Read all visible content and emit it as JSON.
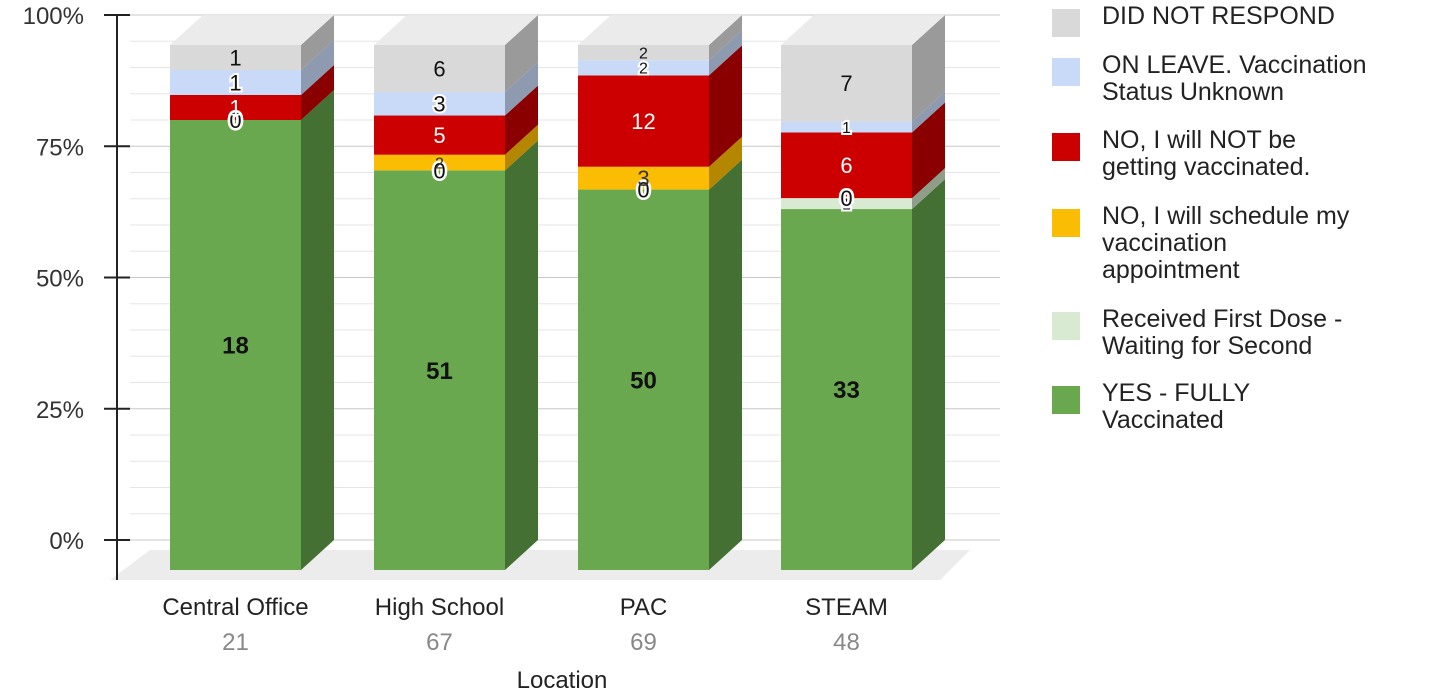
{
  "chart_data": {
    "type": "bar",
    "stacked": true,
    "normalized_percent": true,
    "xlabel": "Location",
    "ylabel": "",
    "ylim": [
      0,
      100
    ],
    "yticks": [
      "0%",
      "25%",
      "50%",
      "75%",
      "100%"
    ],
    "categories": [
      "Central Office",
      "High School",
      "PAC",
      "STEAM"
    ],
    "category_totals": [
      "21",
      "67",
      "69",
      "48"
    ],
    "series": [
      {
        "name": "YES - FULLY\nVaccinated",
        "color": "#6aa84f",
        "side_color": "#447034",
        "label_color": "#111111",
        "values": [
          18,
          51,
          50,
          33
        ]
      },
      {
        "name": "Received First Dose -\nWaiting for Second",
        "color": "#d9ead3",
        "side_color": "#8f9e8a",
        "label_color": "#111111",
        "values": [
          0,
          0,
          0,
          1
        ]
      },
      {
        "name": "NO, I will schedule my\nvaccination\nappointment",
        "color": "#fbbc04",
        "side_color": "#b58700",
        "label_color": "#333333",
        "values": [
          0,
          2,
          3,
          0
        ]
      },
      {
        "name": "NO, I will NOT be\ngetting vaccinated.",
        "color": "#cc0000",
        "side_color": "#8a0000",
        "label_color": "#ffffff",
        "values": [
          1,
          5,
          12,
          6
        ]
      },
      {
        "name": "ON LEAVE. Vaccination\nStatus Unknown",
        "color": "#c9daf8",
        "side_color": "#8d9ab0",
        "label_color": "#111111",
        "values": [
          1,
          3,
          2,
          1
        ]
      },
      {
        "name": "DID NOT RESPOND",
        "color": "#d9d9d9",
        "side_color": "#9a9a9a",
        "label_color": "#111111",
        "values": [
          1,
          6,
          2,
          7
        ]
      }
    ],
    "legend_position": "right",
    "grid": true
  }
}
